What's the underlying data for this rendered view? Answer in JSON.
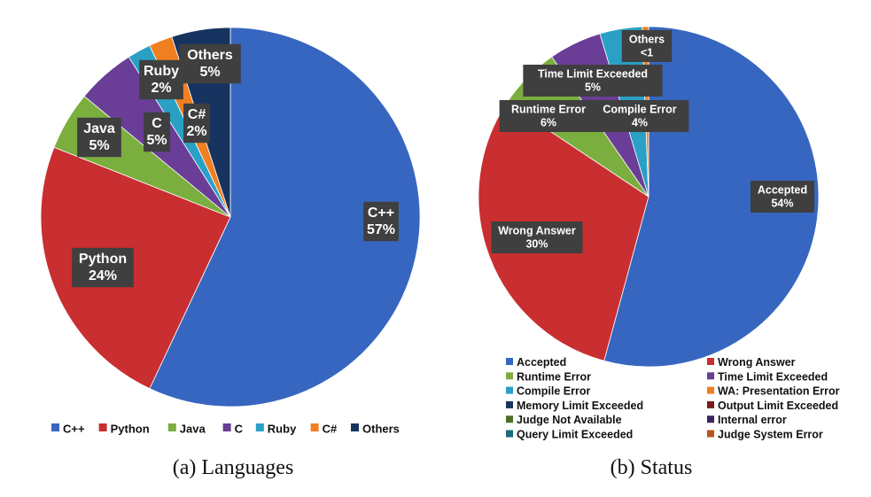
{
  "chart_data": [
    {
      "type": "pie",
      "caption": "(a) Languages",
      "slices": [
        {
          "label": "C++",
          "pct_text": "57%",
          "value": 57,
          "color": "#3766c0"
        },
        {
          "label": "Python",
          "pct_text": "24%",
          "value": 24,
          "color": "#c92e30"
        },
        {
          "label": "Java",
          "pct_text": "5%",
          "value": 5,
          "color": "#7aae3e"
        },
        {
          "label": "C",
          "pct_text": "5%",
          "value": 5,
          "color": "#6a3d96"
        },
        {
          "label": "Ruby",
          "pct_text": "2%",
          "value": 2,
          "color": "#29a0c4"
        },
        {
          "label": "C#",
          "pct_text": "2%",
          "value": 2,
          "color": "#f07f22"
        },
        {
          "label": "Others",
          "pct_text": "5%",
          "value": 5,
          "color": "#17335f"
        }
      ],
      "legend": [
        "C++",
        "Python",
        "Java",
        "C",
        "Ruby",
        "C#",
        "Others"
      ],
      "legend_position": "bottom"
    },
    {
      "type": "pie",
      "caption": "(b) Status",
      "slices": [
        {
          "label": "Accepted",
          "pct_text": "54%",
          "value": 54,
          "color": "#3766c0",
          "labeled": true
        },
        {
          "label": "Wrong Answer",
          "pct_text": "30%",
          "value": 30,
          "color": "#c92e30",
          "labeled": true
        },
        {
          "label": "Runtime Error",
          "pct_text": "6%",
          "value": 6,
          "color": "#7aae3e",
          "labeled": true
        },
        {
          "label": "Time Limit Exceeded",
          "pct_text": "5%",
          "value": 5,
          "color": "#6a3d96",
          "labeled": true
        },
        {
          "label": "Compile Error",
          "pct_text": "4%",
          "value": 4,
          "color": "#29a0c4",
          "labeled": true
        },
        {
          "label": "Others",
          "pct_text": "<1",
          "value": 0.6,
          "color": "#f07f22",
          "labeled": true
        }
      ],
      "legend": [
        {
          "label": "Accepted",
          "color": "#3766c0"
        },
        {
          "label": "Wrong Answer",
          "color": "#c92e30"
        },
        {
          "label": "Runtime Error",
          "color": "#7aae3e"
        },
        {
          "label": "Time Limit Exceeded",
          "color": "#6a3d96"
        },
        {
          "label": "Compile Error",
          "color": "#29a0c4"
        },
        {
          "label": "WA: Presentation Error",
          "color": "#f07f22"
        },
        {
          "label": "Memory Limit Exceeded",
          "color": "#17335f"
        },
        {
          "label": "Output Limit Exceeded",
          "color": "#7a1d1d"
        },
        {
          "label": "Judge Not Available",
          "color": "#4e6e2a"
        },
        {
          "label": "Internal error",
          "color": "#3a2460"
        },
        {
          "label": "Query Limit Exceeded",
          "color": "#1b6b7d"
        },
        {
          "label": "Judge System Error",
          "color": "#b8561b"
        }
      ],
      "legend_position": "bottom"
    }
  ]
}
